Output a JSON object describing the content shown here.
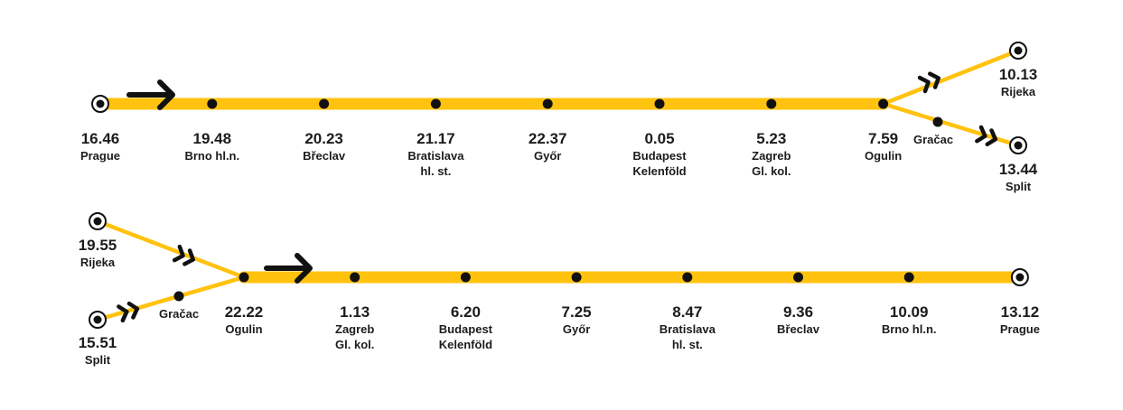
{
  "colors": {
    "line": "#FFC20E",
    "ink": "#111111",
    "background": "#FFFFFF"
  },
  "routes": [
    {
      "id": "northbound",
      "trunk": [
        {
          "time": "16.46",
          "name": [
            "Prague"
          ],
          "terminus": true
        },
        {
          "time": "19.48",
          "name": [
            "Brno hl.n."
          ]
        },
        {
          "time": "20.23",
          "name": [
            "Břeclav"
          ]
        },
        {
          "time": "21.17",
          "name": [
            "Bratislava",
            "hl. st."
          ]
        },
        {
          "time": "22.37",
          "name": [
            "Győr"
          ]
        },
        {
          "time": "0.05",
          "name": [
            "Budapest",
            "Kelenföld"
          ]
        },
        {
          "time": "5.23",
          "name": [
            "Zagreb",
            "Gl. kol."
          ]
        },
        {
          "time": "7.59",
          "name": [
            "Ogulin"
          ]
        }
      ],
      "branch_up": {
        "terminus": {
          "time": "10.13",
          "name": [
            "Rijeka"
          ]
        }
      },
      "branch_down": {
        "via": {
          "name": "Gračac"
        },
        "terminus": {
          "time": "13.44",
          "name": [
            "Split"
          ]
        }
      }
    },
    {
      "id": "southbound",
      "branch_up": {
        "terminus": {
          "time": "19.55",
          "name": [
            "Rijeka"
          ]
        }
      },
      "branch_down": {
        "via": {
          "name": "Gračac"
        },
        "terminus": {
          "time": "15.51",
          "name": [
            "Split"
          ]
        }
      },
      "trunk": [
        {
          "time": "22.22",
          "name": [
            "Ogulin"
          ]
        },
        {
          "time": "1.13",
          "name": [
            "Zagreb",
            "Gl. kol."
          ]
        },
        {
          "time": "6.20",
          "name": [
            "Budapest",
            "Kelenföld"
          ]
        },
        {
          "time": "7.25",
          "name": [
            "Győr"
          ]
        },
        {
          "time": "8.47",
          "name": [
            "Bratislava",
            "hl. st."
          ]
        },
        {
          "time": "9.36",
          "name": [
            "Břeclav"
          ]
        },
        {
          "time": "10.09",
          "name": [
            "Brno hl.n."
          ]
        },
        {
          "time": "13.12",
          "name": [
            "Prague"
          ],
          "terminus": true
        }
      ]
    }
  ]
}
